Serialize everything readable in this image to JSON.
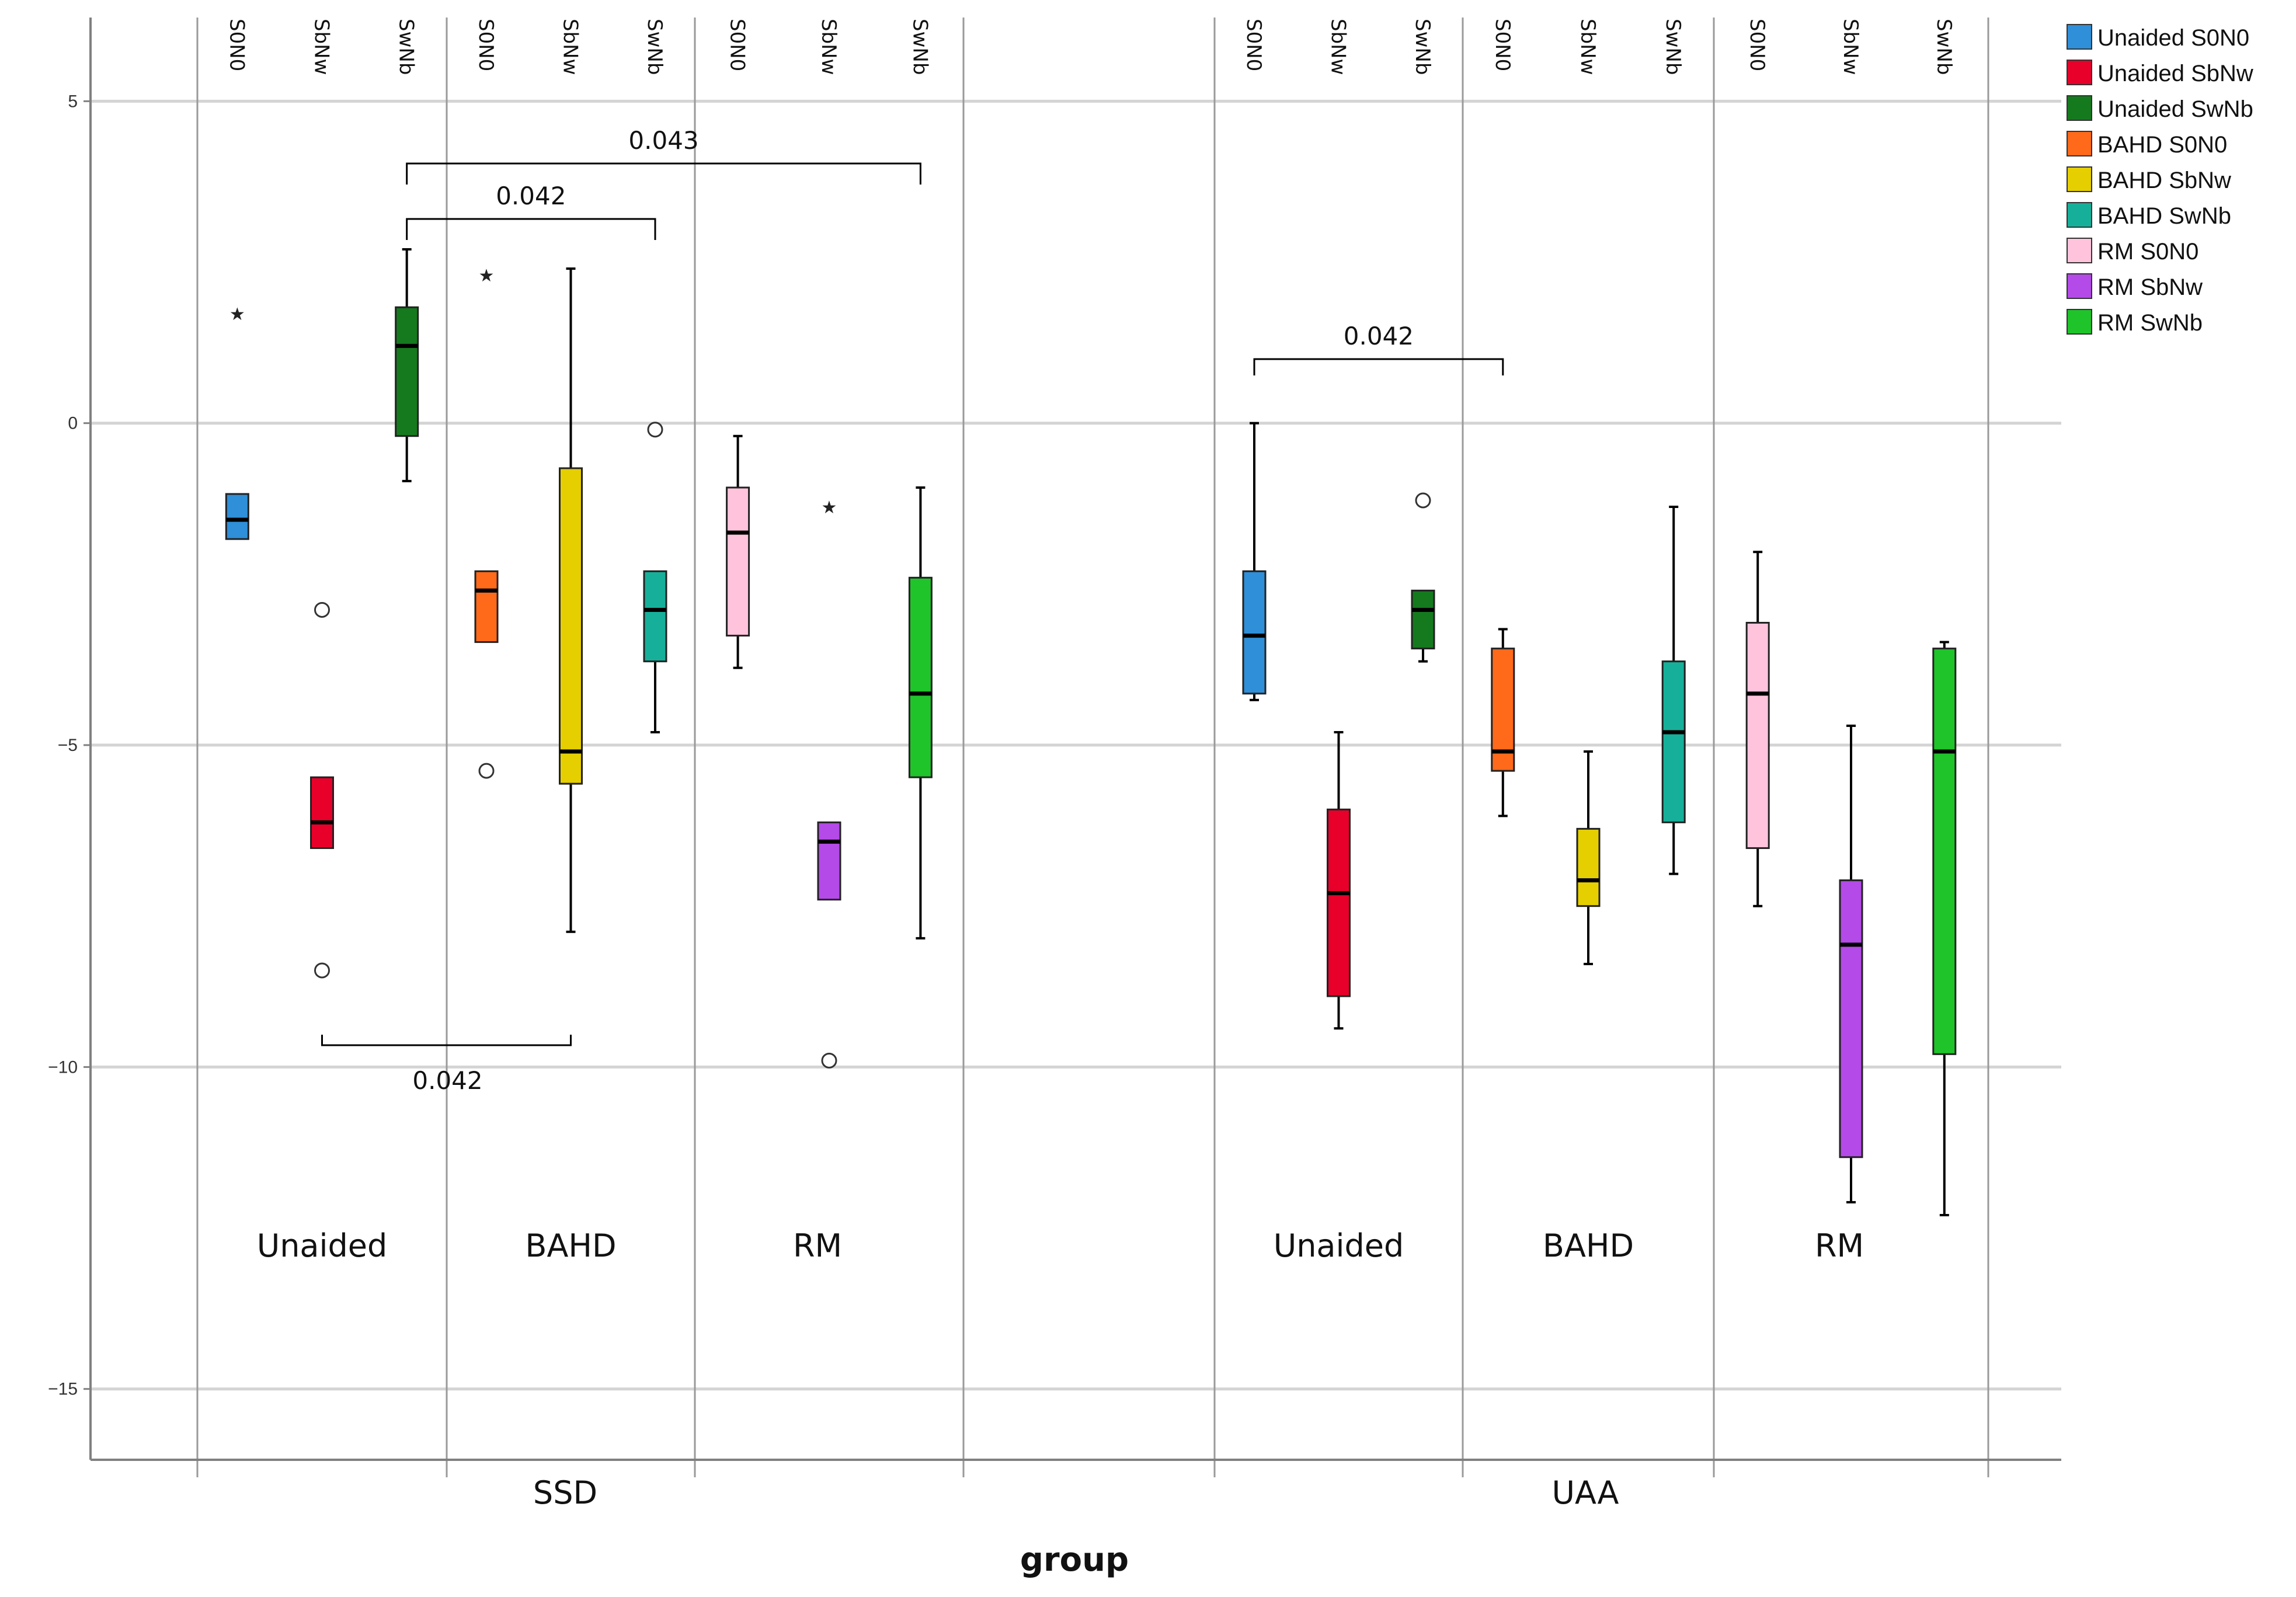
{
  "chart_data": {
    "type": "boxplot",
    "xlabel": "group",
    "ylabel": "",
    "ylim": [
      -16.1,
      6.3
    ],
    "yticks": [
      5,
      0,
      -5,
      -10,
      -15
    ],
    "groups": [
      "SSD",
      "UAA"
    ],
    "categories": [
      "Unaided",
      "BAHD",
      "RM"
    ],
    "conditions": [
      "S0N0",
      "SbNw",
      "SwNb"
    ],
    "legend": [
      {
        "label": "Unaided S0N0",
        "color": "#2f8fd8"
      },
      {
        "label": "Unaided SbNw",
        "color": "#e8002a"
      },
      {
        "label": "Unaided SwNb",
        "color": "#157a1e"
      },
      {
        "label": "BAHD S0N0",
        "color": "#ff6a1a"
      },
      {
        "label": "BAHD SbNw",
        "color": "#e6cf00"
      },
      {
        "label": "BAHD SwNb",
        "color": "#16b09a"
      },
      {
        "label": "RM S0N0",
        "color": "#ffc4dc"
      },
      {
        "label": "RM SbNw",
        "color": "#b44ae8"
      },
      {
        "label": "RM SwNb",
        "color": "#1fc42a"
      }
    ],
    "series": [
      {
        "name": "Unaided S0N0",
        "group": "SSD",
        "min": -1.8,
        "q1": -1.8,
        "median": -1.5,
        "q3": -1.1,
        "max": -1.1,
        "outliers": [
          {
            "value": 1.7,
            "symbol": "star"
          }
        ]
      },
      {
        "name": "Unaided SbNw",
        "group": "SSD",
        "min": -6.6,
        "q1": -6.6,
        "median": -6.2,
        "q3": -5.5,
        "max": -5.5,
        "outliers": [
          {
            "value": -2.9,
            "symbol": "circle"
          },
          {
            "value": -8.5,
            "symbol": "circle"
          }
        ]
      },
      {
        "name": "Unaided SwNb",
        "group": "SSD",
        "min": -0.9,
        "q1": -0.2,
        "median": 1.2,
        "q3": 1.8,
        "max": 2.7,
        "outliers": []
      },
      {
        "name": "BAHD S0N0",
        "group": "SSD",
        "min": -3.4,
        "q1": -3.4,
        "median": -2.6,
        "q3": -2.3,
        "max": -2.3,
        "outliers": [
          {
            "value": 2.3,
            "symbol": "star"
          },
          {
            "value": -5.4,
            "symbol": "circle"
          }
        ]
      },
      {
        "name": "BAHD SbNw",
        "group": "SSD",
        "min": -7.9,
        "q1": -5.6,
        "median": -5.1,
        "q3": -0.7,
        "max": 2.4,
        "outliers": []
      },
      {
        "name": "BAHD SwNb",
        "group": "SSD",
        "min": -4.8,
        "q1": -3.7,
        "median": -2.9,
        "q3": -2.3,
        "max": -2.3,
        "outliers": [
          {
            "value": -0.1,
            "symbol": "circle"
          }
        ]
      },
      {
        "name": "RM S0N0",
        "group": "SSD",
        "min": -3.8,
        "q1": -3.3,
        "median": -1.7,
        "q3": -1.0,
        "max": -0.2,
        "outliers": []
      },
      {
        "name": "RM SbNw",
        "group": "SSD",
        "min": -7.4,
        "q1": -7.4,
        "median": -6.5,
        "q3": -6.2,
        "max": -6.2,
        "outliers": [
          {
            "value": -1.3,
            "symbol": "star"
          },
          {
            "value": -9.9,
            "symbol": "circle"
          }
        ]
      },
      {
        "name": "RM SwNb",
        "group": "SSD",
        "min": -8.0,
        "q1": -5.5,
        "median": -4.2,
        "q3": -2.4,
        "max": -1.0,
        "outliers": []
      },
      {
        "name": "Unaided S0N0",
        "group": "UAA",
        "min": -4.3,
        "q1": -4.2,
        "median": -3.3,
        "q3": -2.3,
        "max": 0.0,
        "outliers": []
      },
      {
        "name": "Unaided SbNw",
        "group": "UAA",
        "min": -9.4,
        "q1": -8.9,
        "median": -7.3,
        "q3": -6.0,
        "max": -4.8,
        "outliers": []
      },
      {
        "name": "Unaided SwNb",
        "group": "UAA",
        "min": -3.7,
        "q1": -3.5,
        "median": -2.9,
        "q3": -2.6,
        "max": -2.6,
        "outliers": [
          {
            "value": -1.2,
            "symbol": "circle"
          }
        ]
      },
      {
        "name": "BAHD S0N0",
        "group": "UAA",
        "min": -6.1,
        "q1": -5.4,
        "median": -5.1,
        "q3": -3.5,
        "max": -3.2,
        "outliers": []
      },
      {
        "name": "BAHD SbNw",
        "group": "UAA",
        "min": -8.4,
        "q1": -7.5,
        "median": -7.1,
        "q3": -6.3,
        "max": -5.1,
        "outliers": []
      },
      {
        "name": "BAHD SwNb",
        "group": "UAA",
        "min": -7.0,
        "q1": -6.2,
        "median": -4.8,
        "q3": -3.7,
        "max": -1.3,
        "outliers": []
      },
      {
        "name": "RM S0N0",
        "group": "UAA",
        "min": -7.5,
        "q1": -6.6,
        "median": -4.2,
        "q3": -3.1,
        "max": -2.0,
        "outliers": []
      },
      {
        "name": "RM SbNw",
        "group": "UAA",
        "min": -12.1,
        "q1": -11.4,
        "median": -8.1,
        "q3": -7.1,
        "max": -4.7,
        "outliers": []
      },
      {
        "name": "RM SwNb",
        "group": "UAA",
        "min": -12.3,
        "q1": -9.8,
        "median": -5.1,
        "q3": -3.5,
        "max": -3.4,
        "outliers": []
      }
    ],
    "annotations": [
      {
        "label": "0.043",
        "group": "SSD",
        "from": "Unaided SwNb",
        "to": "RM SwNb",
        "position": "above"
      },
      {
        "label": "0.042",
        "group": "SSD",
        "from": "Unaided SwNb",
        "to": "BAHD SwNb",
        "position": "above"
      },
      {
        "label": "0.042",
        "group": "UAA",
        "from": "Unaided S0N0",
        "to": "BAHD S0N0",
        "position": "above"
      },
      {
        "label": "0.042",
        "group": "SSD",
        "from": "Unaided SbNw",
        "to": "BAHD SbNw",
        "position": "below"
      }
    ]
  }
}
